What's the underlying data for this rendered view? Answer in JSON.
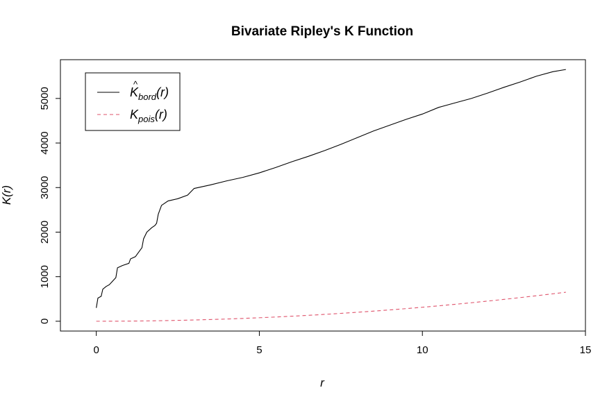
{
  "chart_data": {
    "type": "line",
    "title": "Bivariate Ripley's K Function",
    "xlabel": "r",
    "ylabel": "K(r)",
    "xlim": [
      -1.1,
      15
    ],
    "ylim": [
      -220,
      5870
    ],
    "x_ticks": [
      0,
      5,
      10,
      15
    ],
    "y_ticks": [
      0,
      1000,
      2000,
      3000,
      4000,
      5000
    ],
    "grid": false,
    "legend_position": "top-left",
    "series": [
      {
        "name": "K̂_bord(r)",
        "legend_main": "K",
        "legend_hat": "^",
        "legend_sub": "bord",
        "legend_arg": "(r)",
        "color": "#000000",
        "dash": "solid",
        "points": [
          [
            0.0,
            300
          ],
          [
            0.05,
            520
          ],
          [
            0.15,
            560
          ],
          [
            0.2,
            720
          ],
          [
            0.3,
            780
          ],
          [
            0.4,
            820
          ],
          [
            0.5,
            900
          ],
          [
            0.6,
            980
          ],
          [
            0.65,
            1200
          ],
          [
            0.8,
            1250
          ],
          [
            1.0,
            1300
          ],
          [
            1.05,
            1400
          ],
          [
            1.2,
            1450
          ],
          [
            1.3,
            1550
          ],
          [
            1.4,
            1650
          ],
          [
            1.45,
            1850
          ],
          [
            1.55,
            2000
          ],
          [
            1.7,
            2100
          ],
          [
            1.8,
            2150
          ],
          [
            1.85,
            2200
          ],
          [
            1.9,
            2400
          ],
          [
            1.95,
            2500
          ],
          [
            2.0,
            2600
          ],
          [
            2.2,
            2700
          ],
          [
            2.5,
            2750
          ],
          [
            2.8,
            2830
          ],
          [
            3.0,
            2980
          ],
          [
            3.5,
            3060
          ],
          [
            4.0,
            3150
          ],
          [
            4.5,
            3230
          ],
          [
            5.0,
            3330
          ],
          [
            5.5,
            3450
          ],
          [
            6.0,
            3580
          ],
          [
            6.5,
            3700
          ],
          [
            7.0,
            3830
          ],
          [
            7.5,
            3970
          ],
          [
            8.0,
            4120
          ],
          [
            8.5,
            4270
          ],
          [
            9.0,
            4400
          ],
          [
            9.5,
            4530
          ],
          [
            10.0,
            4650
          ],
          [
            10.5,
            4800
          ],
          [
            11.0,
            4900
          ],
          [
            11.5,
            5000
          ],
          [
            12.0,
            5120
          ],
          [
            12.5,
            5250
          ],
          [
            13.0,
            5370
          ],
          [
            13.5,
            5500
          ],
          [
            14.0,
            5600
          ],
          [
            14.4,
            5650
          ]
        ]
      },
      {
        "name": "K_pois(r)",
        "legend_main": "K",
        "legend_hat": "",
        "legend_sub": "pois",
        "legend_arg": "(r)",
        "color": "#DF536B",
        "dash": "dashed",
        "formula": "pi * r^2",
        "x_range": [
          0,
          14.4
        ]
      }
    ]
  }
}
